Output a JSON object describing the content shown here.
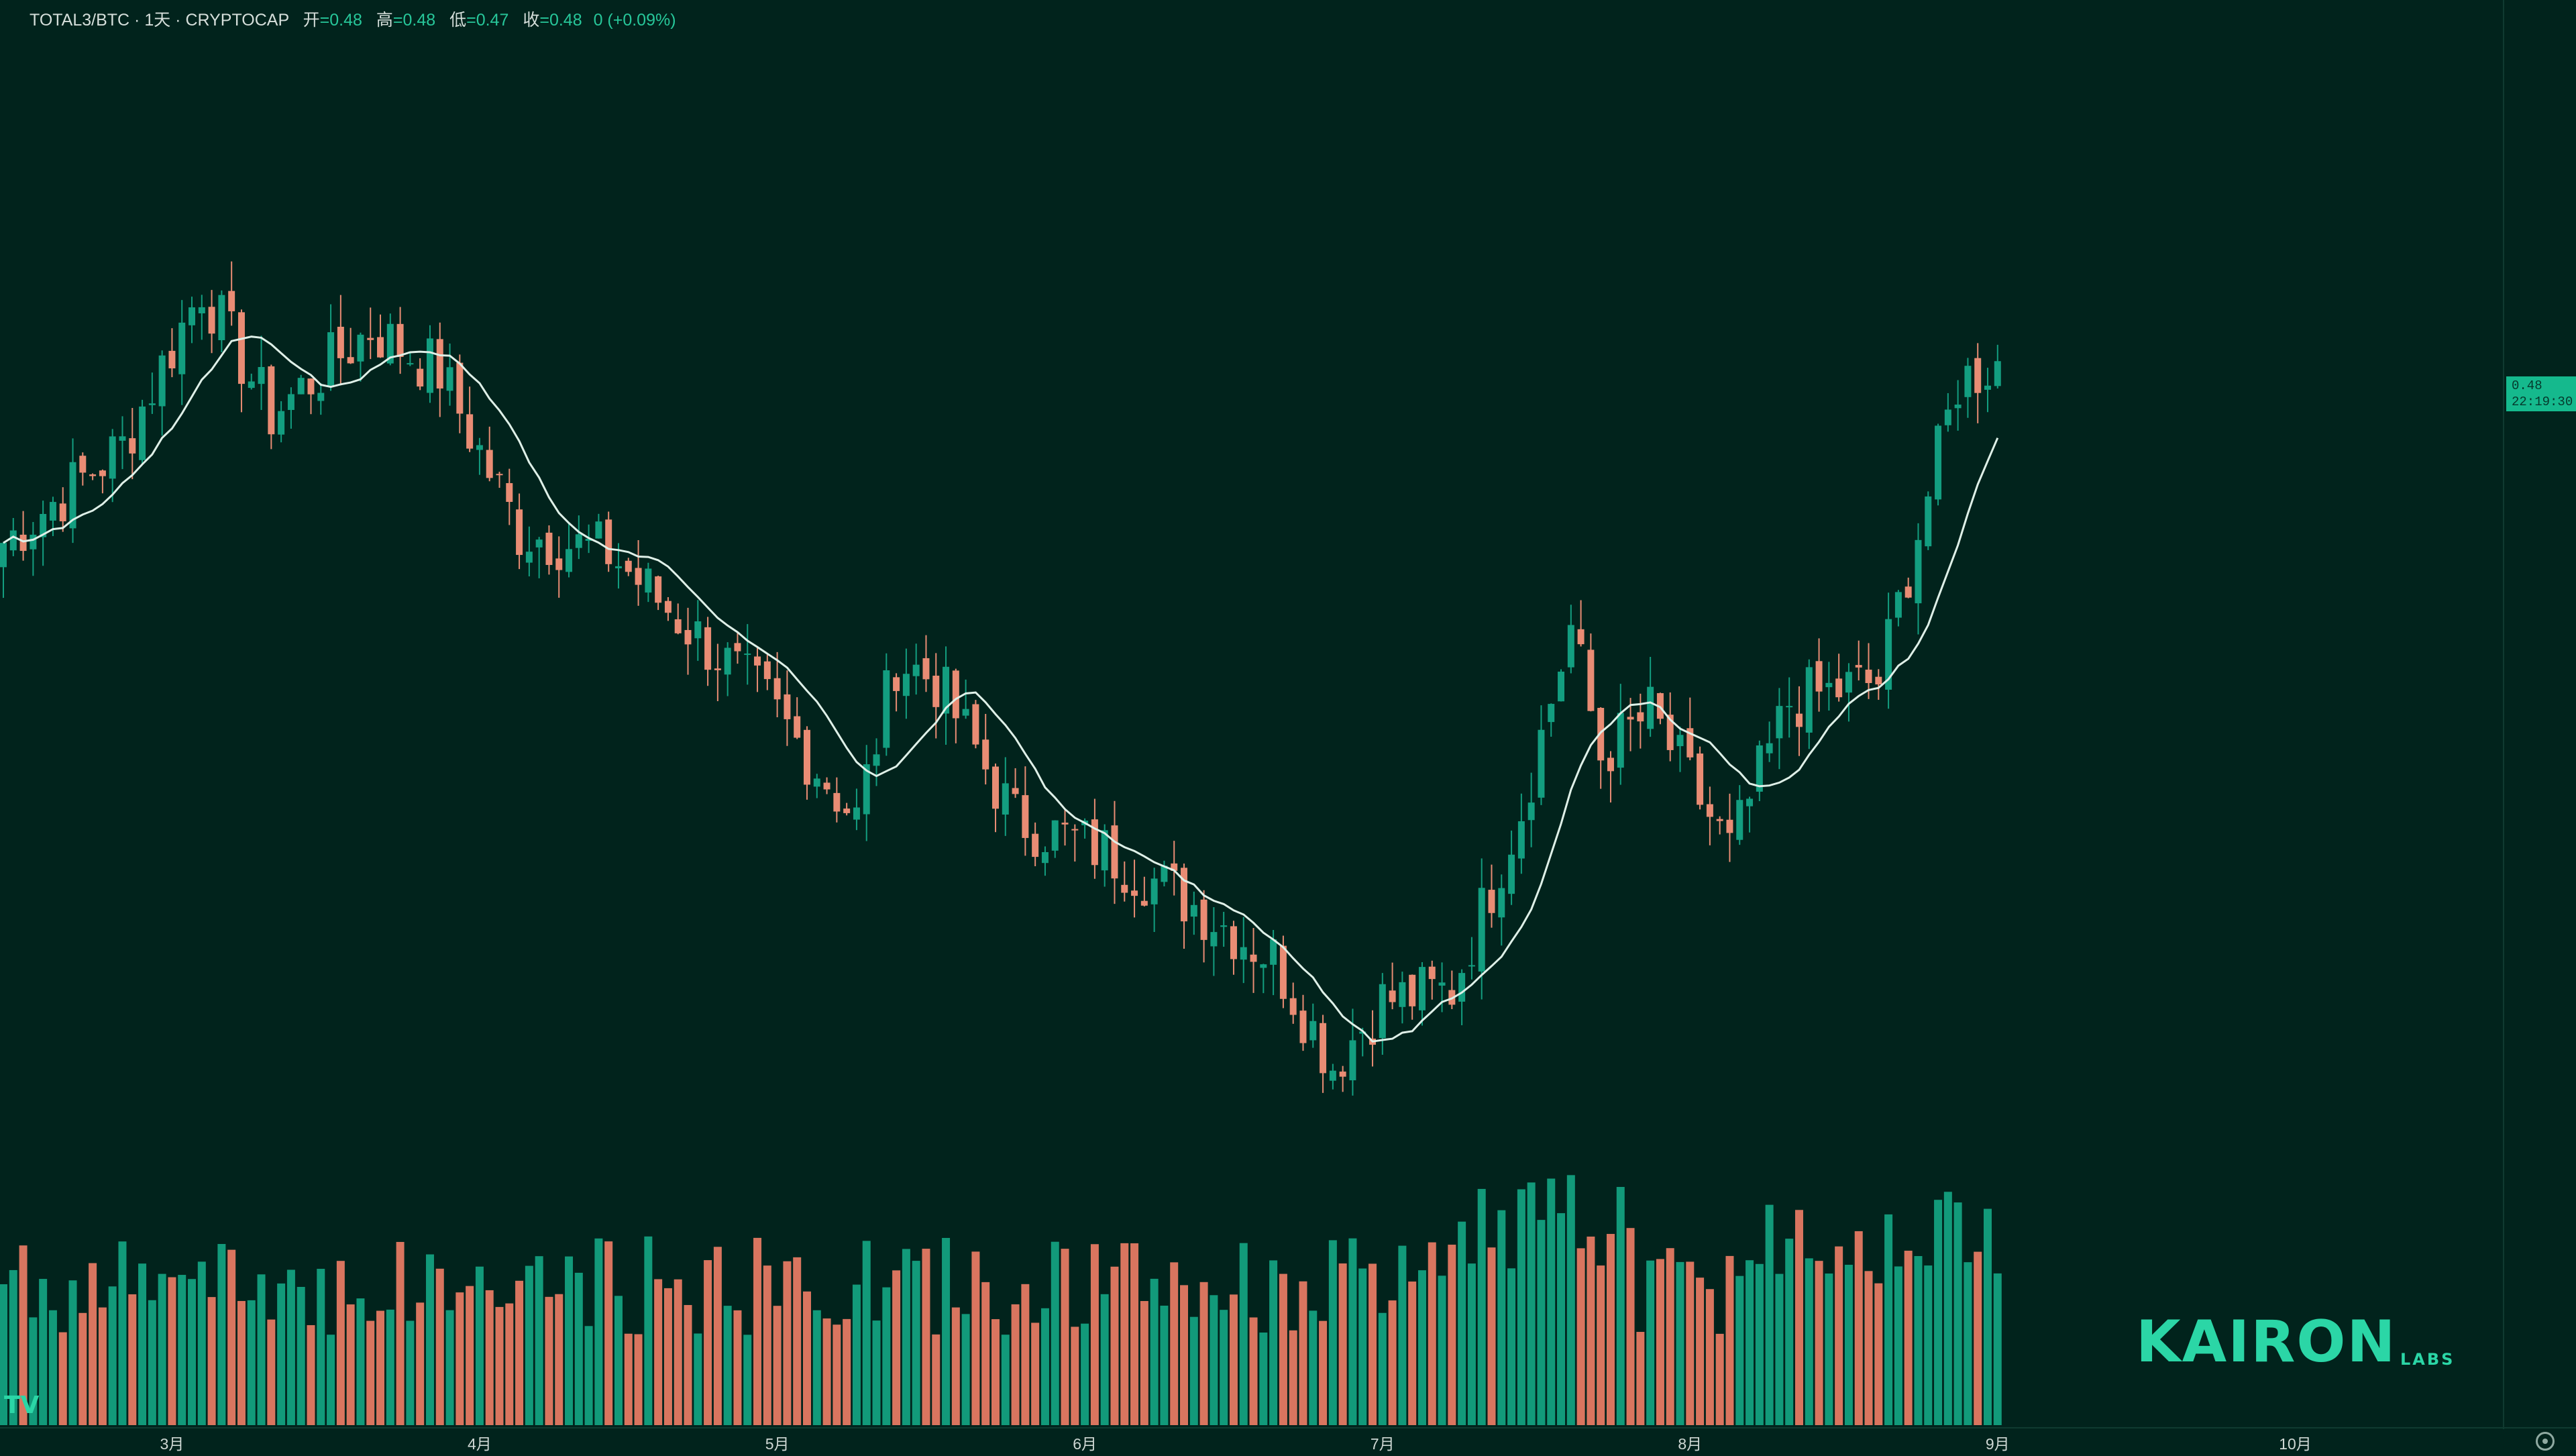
{
  "header": {
    "symbol": "TOTAL3/BTC · 1天 · CRYPTOCAP",
    "open_label": "开",
    "open_value": "=0.48",
    "high_label": "高",
    "high_value": "=0.48",
    "low_label": "低",
    "low_value": "=0.47",
    "close_label": "收",
    "close_value": "=0.48",
    "change": "0 (+0.09%)"
  },
  "price_tag": {
    "price": "0.48",
    "time": "22:19:30"
  },
  "branding": {
    "logo_text": "KAIRON",
    "logo_sub": "LABS",
    "tv_logo": "TV"
  },
  "icons": {
    "tv_logo": "tradingview-logo-icon",
    "settings": "gear-icon"
  },
  "colors": {
    "background": "#01231c",
    "up": "#139e80",
    "down": "#e98c74",
    "ma": "#dff0e8",
    "volume_up": "#129a7a",
    "volume_down": "#d9755f"
  },
  "chart_data": {
    "type": "candlestick",
    "xaxis_ticks": [
      "3月",
      "4月",
      "5月",
      "6月",
      "7月",
      "8月",
      "9月",
      "10月"
    ],
    "ohlc_anchors": [
      {
        "date": "2024-02-13",
        "close": 0.463
      },
      {
        "date": "2024-02-25",
        "close": 0.472
      },
      {
        "date": "2024-03-04",
        "close": 0.487
      },
      {
        "date": "2024-03-11",
        "close": 0.475
      },
      {
        "date": "2024-03-21",
        "close": 0.483
      },
      {
        "date": "2024-03-28",
        "close": 0.479
      },
      {
        "date": "2024-04-05",
        "close": 0.464
      },
      {
        "date": "2024-04-14",
        "close": 0.462
      },
      {
        "date": "2024-04-22",
        "close": 0.455
      },
      {
        "date": "2024-04-30",
        "close": 0.448
      },
      {
        "date": "2024-05-09",
        "close": 0.437
      },
      {
        "date": "2024-05-13",
        "close": 0.452
      },
      {
        "date": "2024-05-17",
        "close": 0.45
      },
      {
        "date": "2024-05-25",
        "close": 0.437
      },
      {
        "date": "2024-06-03",
        "close": 0.434
      },
      {
        "date": "2024-06-12",
        "close": 0.429
      },
      {
        "date": "2024-06-20",
        "close": 0.424
      },
      {
        "date": "2024-06-26",
        "close": 0.414
      },
      {
        "date": "2024-07-01",
        "close": 0.42
      },
      {
        "date": "2024-07-08",
        "close": 0.421
      },
      {
        "date": "2024-07-15",
        "close": 0.438
      },
      {
        "date": "2024-07-20",
        "close": 0.455
      },
      {
        "date": "2024-07-23",
        "close": 0.443
      },
      {
        "date": "2024-07-28",
        "close": 0.447
      },
      {
        "date": "2024-08-05",
        "close": 0.434
      },
      {
        "date": "2024-08-11",
        "close": 0.448
      },
      {
        "date": "2024-08-20",
        "close": 0.45
      },
      {
        "date": "2024-08-28",
        "close": 0.478
      },
      {
        "date": "2024-09-01",
        "close": 0.48
      }
    ],
    "moving_average": true,
    "volume": true,
    "ylim": [
      0.41,
      0.495
    ],
    "last_price": 0.48,
    "grid": false
  }
}
